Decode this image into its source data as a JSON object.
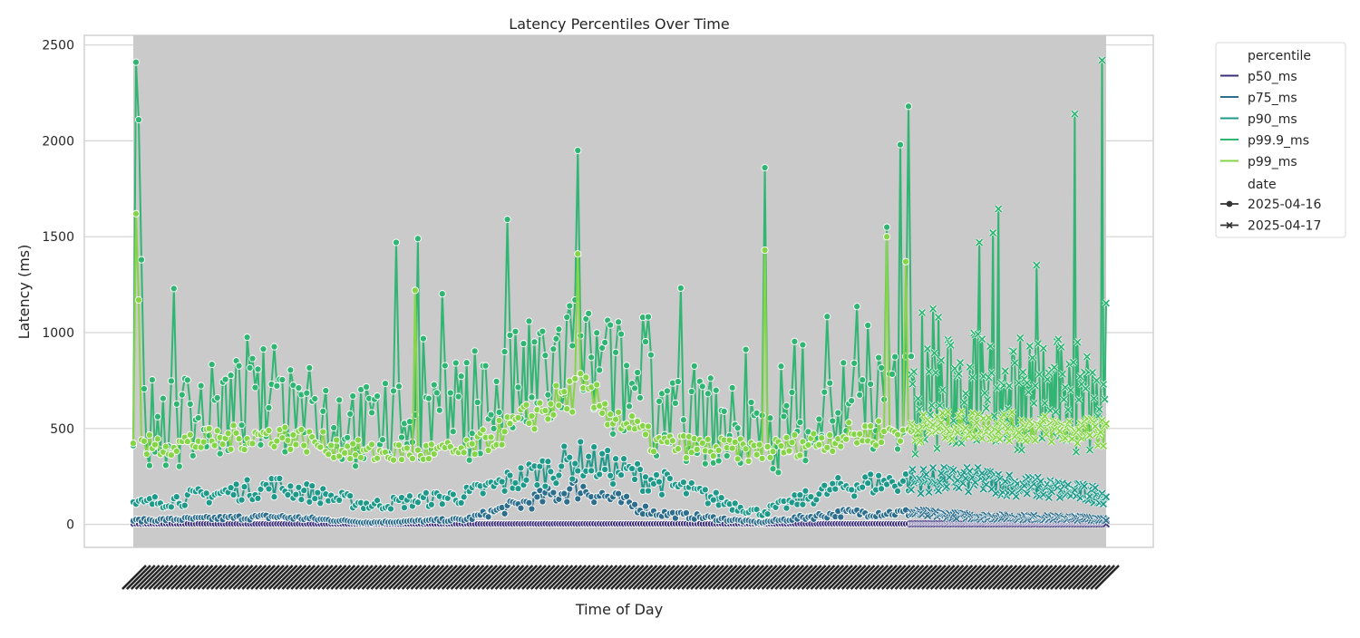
{
  "chart_data": {
    "type": "line",
    "title": "Latency Percentiles Over Time",
    "xlabel": "Time of Day",
    "ylabel": "Latency (ms)",
    "ylim": [
      -120,
      2550
    ],
    "yticks": [
      0,
      500,
      1000,
      1500,
      2000,
      2500
    ],
    "grid": true,
    "legend_position": "outside-top-right",
    "x_tick_labels": "dense, unreadable (one per time step)",
    "colors": {
      "p50_ms": "#3b2d78",
      "p75_ms": "#2c6e8c",
      "p90_ms": "#1f9a8a",
      "p99.9_ms": "#31b573",
      "p99_ms": "#86d549",
      "band": "#cacaca"
    },
    "legend": {
      "percentile_title": "percentile",
      "percentile_items": [
        "p50_ms",
        "p75_ms",
        "p90_ms",
        "p99.9_ms",
        "p99_ms"
      ],
      "date_title": "date",
      "date_items": [
        {
          "label": "2025-04-16",
          "marker": "circle"
        },
        {
          "label": "2025-04-17",
          "marker": "x"
        }
      ]
    },
    "dates": [
      "2025-04-16",
      "2025-04-17"
    ],
    "points_per_series": {
      "2025-04-16": 288,
      "2025-04-17": 144
    },
    "series": [
      {
        "name": "p50_ms",
        "approx_baseline": [
          [
            0,
            3
          ],
          [
            0.25,
            2
          ],
          [
            0.5,
            3
          ],
          [
            0.75,
            3
          ],
          [
            1,
            2
          ]
        ]
      },
      {
        "name": "p75_ms",
        "approx_baseline": [
          [
            0,
            20
          ],
          [
            0.15,
            40
          ],
          [
            0.25,
            10
          ],
          [
            0.35,
            25
          ],
          [
            0.47,
            190
          ],
          [
            0.55,
            60
          ],
          [
            0.66,
            10
          ],
          [
            0.75,
            60
          ],
          [
            0.82,
            60
          ],
          [
            0.88,
            40
          ],
          [
            1,
            30
          ]
        ]
      },
      {
        "name": "p90_ms",
        "approx_baseline": [
          [
            0,
            100
          ],
          [
            0.15,
            200
          ],
          [
            0.25,
            100
          ],
          [
            0.35,
            150
          ],
          [
            0.47,
            340
          ],
          [
            0.55,
            230
          ],
          [
            0.66,
            60
          ],
          [
            0.75,
            200
          ],
          [
            0.82,
            230
          ],
          [
            0.88,
            230
          ],
          [
            1,
            150
          ]
        ]
      },
      {
        "name": "p99.9_ms",
        "approx_baseline": [
          [
            0,
            500
          ],
          [
            0.15,
            650
          ],
          [
            0.25,
            500
          ],
          [
            0.35,
            600
          ],
          [
            0.47,
            850
          ],
          [
            0.55,
            650
          ],
          [
            0.66,
            450
          ],
          [
            0.75,
            620
          ],
          [
            0.82,
            640
          ],
          [
            0.88,
            700
          ],
          [
            1,
            650
          ]
        ]
      },
      {
        "name": "p99_ms",
        "approx_baseline": [
          [
            0,
            400
          ],
          [
            0.15,
            470
          ],
          [
            0.25,
            370
          ],
          [
            0.35,
            380
          ],
          [
            0.47,
            700
          ],
          [
            0.55,
            420
          ],
          [
            0.66,
            380
          ],
          [
            0.75,
            460
          ],
          [
            0.82,
            500
          ],
          [
            0.88,
            520
          ],
          [
            1,
            480
          ]
        ]
      }
    ],
    "spikes_p99_9": [
      2410,
      2110,
      1380,
      1470,
      1490,
      1590,
      1950,
      1860,
      1980,
      1550,
      2180,
      2420,
      2140,
      1520,
      1470,
      1080
    ],
    "spikes_p99": [
      1620,
      1170,
      1220,
      1410,
      1430,
      1500,
      1370
    ]
  }
}
